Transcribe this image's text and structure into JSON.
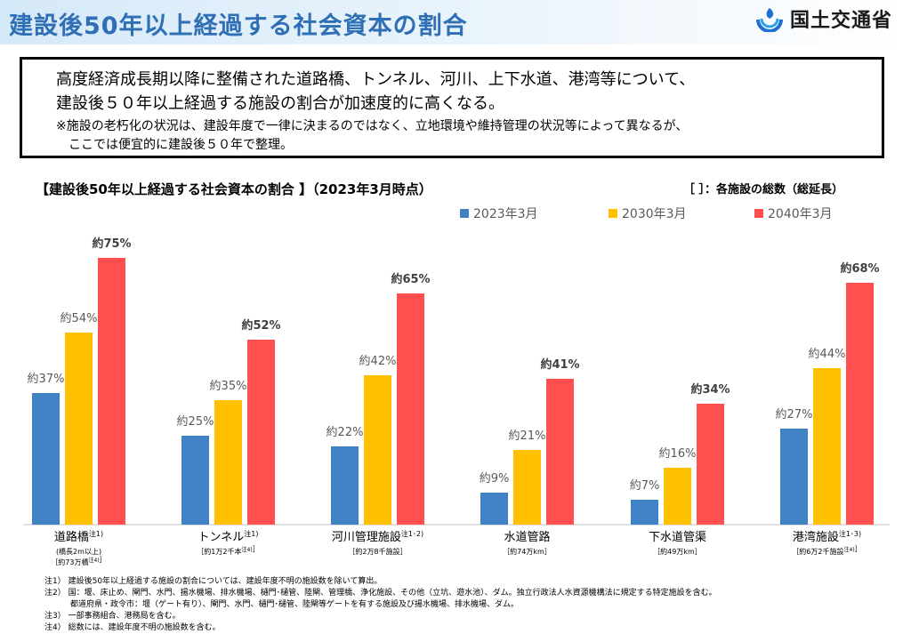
{
  "header": {
    "title": "建設後50年以上経過する社会資本の割合",
    "logo_text": "国土交通省"
  },
  "summary": {
    "line1": "高度経済成長期以降に整備された道路橋、トンネル、河川、上下水道、港湾等について、",
    "line2": "建設後５０年以上経過する施設の割合が加速度的に高くなる。",
    "note1": "※施設の老朽化の状況は、建設年度で一律に決まるのではなく、立地環境や維持管理の状況等によって異なるが、",
    "note2": "ここでは便宜的に建設後５０年で整理。"
  },
  "chart_data": {
    "type": "bar",
    "title": "【建設後50年以上経過する社会資本の割合 】（2023年3月時点）",
    "bracket_note": "［ ］：各施設の総数（総延長）",
    "categories": [
      "道路橋",
      "トンネル",
      "河川管理施設",
      "水道管路",
      "下水道管渠",
      "港湾施設"
    ],
    "category_notes": [
      "注1)",
      "注1)",
      "注1･2)",
      "",
      "",
      "注1･3)"
    ],
    "category_sublabels": [
      [
        "(橋長2m以上)",
        "［約73万橋",
        "注4)",
        "］"
      ],
      [
        "［約1万2千本",
        "注4)",
        "］"
      ],
      [
        "［約2万8千施設］"
      ],
      [
        "［約74万km］"
      ],
      [
        "［約49万km］"
      ],
      [
        "［約6万2千施設",
        "注4)",
        "］"
      ]
    ],
    "series": [
      {
        "name": "2023年3月",
        "color": "#3f83c4",
        "values": [
          37,
          25,
          22,
          9,
          7,
          27
        ],
        "labels": [
          "約37%",
          "約25%",
          "約22%",
          "約9%",
          "約7%",
          "約27%"
        ]
      },
      {
        "name": "2030年3月",
        "color": "#ffc000",
        "values": [
          54,
          35,
          42,
          21,
          16,
          44
        ],
        "labels": [
          "約54%",
          "約35%",
          "約42%",
          "約21%",
          "約16%",
          "約44%"
        ]
      },
      {
        "name": "2040年3月",
        "color": "#ff4f4f",
        "values": [
          75,
          52,
          65,
          41,
          34,
          68
        ],
        "labels": [
          "約75%",
          "約52%",
          "約65%",
          "約41%",
          "約34%",
          "約68%"
        ]
      }
    ],
    "ylim": [
      0,
      75
    ],
    "grid": false,
    "legend_position": "top-right"
  },
  "footnotes": [
    "注1） 建設後50年以上経過する施設の割合については、建設年度不明の施設数を除いて算出。",
    "注2） 国：堰、床止め、閘門、水門、揚水機場、排水機場、樋門･樋管、陸閘、管理橋、浄化施設、その他（立坑、遊水池）、ダム。独立行政法人水資源機構法に規定する特定施設を含む。",
    "都道府県・政令市：堰（ゲート有り）、閘門、水門、樋門･樋管、陸閘等ゲートを有する施設及び揚水機場、排水機場、ダム。",
    "注3） 一部事務組合、港務局を含む。",
    "注4） 総数には、建設年度不明の施設数を含む。"
  ]
}
